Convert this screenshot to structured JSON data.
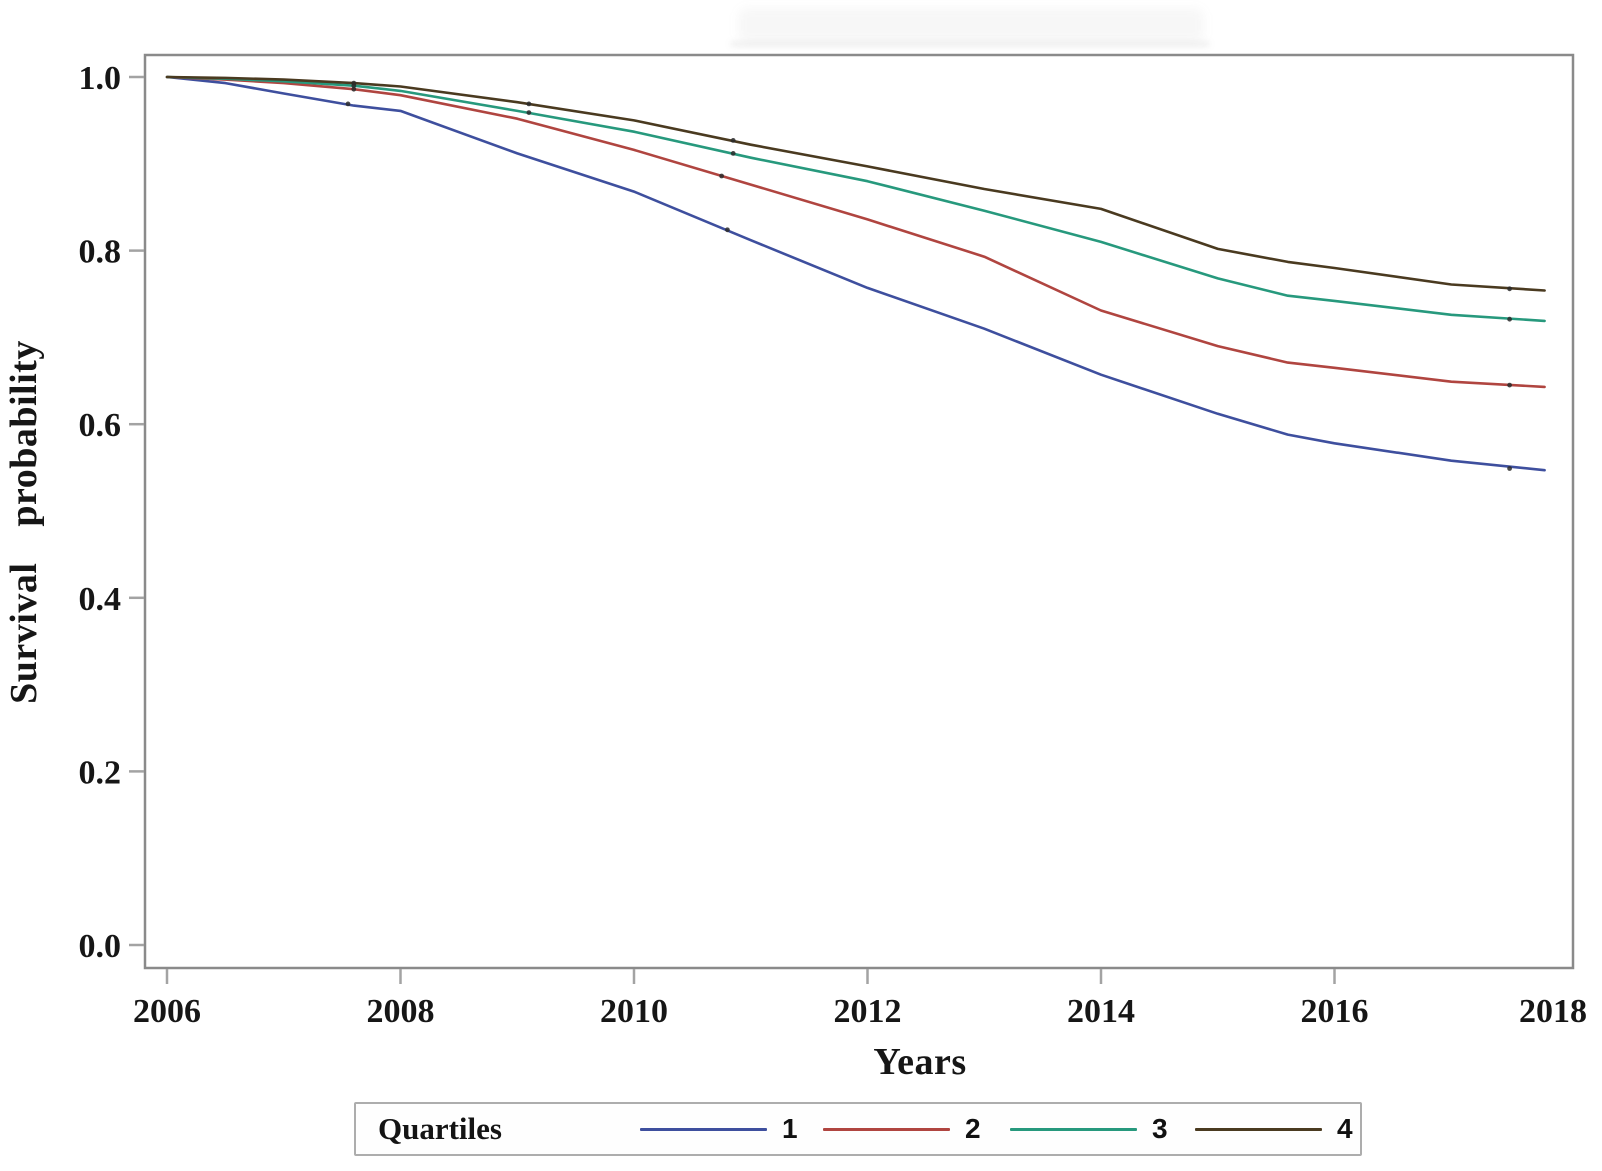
{
  "figure": {
    "xlabel": "Years",
    "ylabel": "Survival probability",
    "legend_title": "Quartiles"
  },
  "chart_data": {
    "type": "line",
    "title": "",
    "xlabel": "Years",
    "ylabel": "Survival probability",
    "xlim": [
      2006,
      2018
    ],
    "ylim": [
      0.0,
      1.0
    ],
    "x_ticks": [
      2006,
      2008,
      2010,
      2012,
      2014,
      2016,
      2018
    ],
    "y_ticks": [
      0.0,
      0.2,
      0.4,
      0.6,
      0.8,
      1.0
    ],
    "grid": false,
    "legend_position": "bottom",
    "legend_title": "Quartiles",
    "frame_color": "#8a8a8a",
    "tick_color": "#a3a3a3",
    "censor_mark_color": "#2a2a2a",
    "series": [
      {
        "name": "Quartile 1",
        "label": "1",
        "color": "#3e4f9e",
        "points": [
          [
            2006,
            1.0
          ],
          [
            2006.5,
            0.993
          ],
          [
            2007,
            0.981
          ],
          [
            2007.6,
            0.967
          ],
          [
            2008,
            0.961
          ],
          [
            2009,
            0.912
          ],
          [
            2010,
            0.868
          ],
          [
            2011,
            0.812
          ],
          [
            2012,
            0.757
          ],
          [
            2013,
            0.71
          ],
          [
            2014,
            0.657
          ],
          [
            2015,
            0.612
          ],
          [
            2015.6,
            0.588
          ],
          [
            2016,
            0.578
          ],
          [
            2017,
            0.558
          ],
          [
            2017.8,
            0.547
          ]
        ],
        "censor_marks": [
          [
            2007.55,
            0.969
          ],
          [
            2010.8,
            0.824
          ],
          [
            2017.5,
            0.549
          ]
        ]
      },
      {
        "name": "Quartile 2",
        "label": "2",
        "color": "#b04540",
        "points": [
          [
            2006,
            1.0
          ],
          [
            2006.5,
            0.997
          ],
          [
            2007,
            0.993
          ],
          [
            2007.6,
            0.986
          ],
          [
            2008,
            0.979
          ],
          [
            2009,
            0.952
          ],
          [
            2010,
            0.916
          ],
          [
            2011,
            0.876
          ],
          [
            2012,
            0.836
          ],
          [
            2013,
            0.793
          ],
          [
            2014,
            0.731
          ],
          [
            2015,
            0.69
          ],
          [
            2015.6,
            0.671
          ],
          [
            2016,
            0.665
          ],
          [
            2017,
            0.649
          ],
          [
            2017.8,
            0.643
          ]
        ],
        "censor_marks": [
          [
            2007.6,
            0.986
          ],
          [
            2010.75,
            0.886
          ],
          [
            2017.5,
            0.645
          ]
        ]
      },
      {
        "name": "Quartile 3",
        "label": "3",
        "color": "#27997d",
        "points": [
          [
            2006,
            1.0
          ],
          [
            2006.5,
            0.998
          ],
          [
            2007,
            0.995
          ],
          [
            2007.6,
            0.99
          ],
          [
            2008,
            0.984
          ],
          [
            2009,
            0.961
          ],
          [
            2010,
            0.937
          ],
          [
            2011,
            0.907
          ],
          [
            2012,
            0.88
          ],
          [
            2013,
            0.846
          ],
          [
            2014,
            0.81
          ],
          [
            2015,
            0.768
          ],
          [
            2015.6,
            0.748
          ],
          [
            2016,
            0.742
          ],
          [
            2017,
            0.726
          ],
          [
            2017.8,
            0.719
          ]
        ],
        "censor_marks": [
          [
            2007.6,
            0.99
          ],
          [
            2009.1,
            0.959
          ],
          [
            2010.85,
            0.912
          ],
          [
            2017.5,
            0.721
          ]
        ]
      },
      {
        "name": "Quartile 4",
        "label": "4",
        "color": "#4a3a20",
        "points": [
          [
            2006,
            1.0
          ],
          [
            2006.5,
            0.999
          ],
          [
            2007,
            0.997
          ],
          [
            2007.6,
            0.993
          ],
          [
            2008,
            0.989
          ],
          [
            2009,
            0.971
          ],
          [
            2010,
            0.95
          ],
          [
            2011,
            0.922
          ],
          [
            2012,
            0.897
          ],
          [
            2013,
            0.871
          ],
          [
            2014,
            0.848
          ],
          [
            2015,
            0.802
          ],
          [
            2015.6,
            0.787
          ],
          [
            2016,
            0.78
          ],
          [
            2017,
            0.761
          ],
          [
            2017.8,
            0.754
          ]
        ],
        "censor_marks": [
          [
            2007.6,
            0.993
          ],
          [
            2009.1,
            0.969
          ],
          [
            2010.85,
            0.927
          ],
          [
            2017.5,
            0.756
          ]
        ]
      }
    ]
  }
}
